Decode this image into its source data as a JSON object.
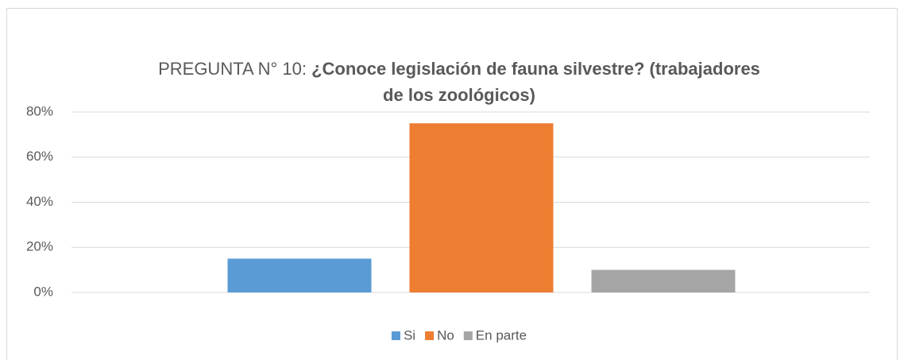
{
  "chart_data": {
    "type": "bar",
    "title": [
      "PREGUNTA N° 10: ",
      "¿Conoce legislación de fauna silvestre? (trabajadores",
      "de los zoológicos)"
    ],
    "categories": [
      null
    ],
    "series": [
      {
        "name": "Si",
        "color": "#5b9bd5",
        "values": [
          15
        ]
      },
      {
        "name": "No",
        "color": "#ed7d31",
        "values": [
          75
        ]
      },
      {
        "name": "En parte",
        "color": "#a5a5a5",
        "values": [
          10
        ]
      }
    ],
    "ylim": [
      0,
      80
    ],
    "yticks": [
      {
        "value": 0,
        "label": "0%"
      },
      {
        "value": 20,
        "label": "20%"
      },
      {
        "value": 40,
        "label": "40%"
      },
      {
        "value": 60,
        "label": "60%"
      },
      {
        "value": 80,
        "label": "80%"
      }
    ],
    "grid": true,
    "legend": "bottom"
  }
}
